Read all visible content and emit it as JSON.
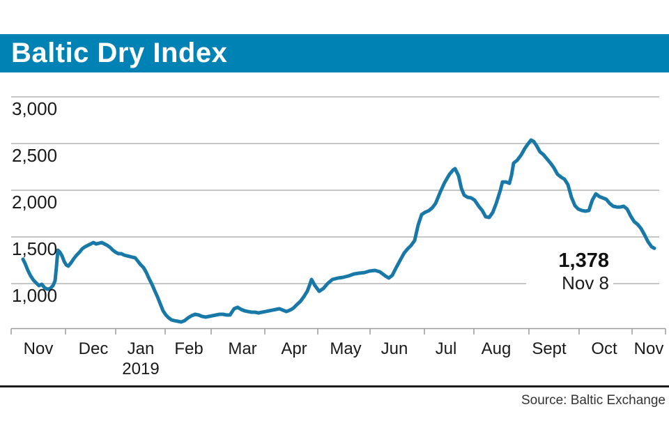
{
  "header": {
    "title": "Baltic Dry Index"
  },
  "footer": {
    "source": "Source: Baltic Exchange"
  },
  "colors": {
    "banner": "#0082b4",
    "line": "#1878a8",
    "grid": "#c6c6c6",
    "axis": "#9b9b9b",
    "text": "#1a1a1a"
  },
  "chart_data": {
    "type": "line",
    "title": "Baltic Dry Index",
    "legend": "none",
    "grid": "horizontal",
    "y_axis": {
      "range_px_anchor": "1000at407_134per1000",
      "ylim": [
        490,
        3100
      ],
      "ticks": [
        {
          "value": 3000,
          "label": "3,000"
        },
        {
          "value": 2500,
          "label": "2,500"
        },
        {
          "value": 2000,
          "label": "2,000"
        },
        {
          "value": 1500,
          "label": "1,500"
        },
        {
          "value": 1000,
          "label": "1,000"
        }
      ]
    },
    "x_axis": {
      "months": [
        {
          "label": "Nov",
          "x": 55
        },
        {
          "label": "Dec",
          "x": 134
        },
        {
          "label": "Jan",
          "x": 202
        },
        {
          "label": "Feb",
          "x": 271
        },
        {
          "label": "Mar",
          "x": 348
        },
        {
          "label": "Apr",
          "x": 422
        },
        {
          "label": "May",
          "x": 496
        },
        {
          "label": "Jun",
          "x": 566
        },
        {
          "label": "Jul",
          "x": 640
        },
        {
          "label": "Aug",
          "x": 712
        },
        {
          "label": "Sept",
          "x": 788
        },
        {
          "label": "Oct",
          "x": 867
        },
        {
          "label": "Nov",
          "x": 931
        }
      ],
      "year_label": {
        "text": "2019",
        "x": 202
      },
      "ticks": [
        16,
        94,
        166,
        237,
        303,
        380,
        456,
        531,
        609,
        680,
        759,
        831,
        907,
        955
      ]
    },
    "annotation": {
      "value": "1,378",
      "date": "Nov 8"
    },
    "points": [
      [
        33,
        1261
      ],
      [
        36,
        1216
      ],
      [
        40,
        1142
      ],
      [
        44,
        1082
      ],
      [
        48,
        1037
      ],
      [
        52,
        1007
      ],
      [
        56,
        978
      ],
      [
        60,
        993
      ],
      [
        64,
        955
      ],
      [
        68,
        940
      ],
      [
        72,
        948
      ],
      [
        76,
        978
      ],
      [
        79,
        1030
      ],
      [
        81,
        1180
      ],
      [
        83,
        1358
      ],
      [
        86,
        1336
      ],
      [
        89,
        1298
      ],
      [
        92,
        1239
      ],
      [
        95,
        1201
      ],
      [
        98,
        1187
      ],
      [
        102,
        1224
      ],
      [
        106,
        1269
      ],
      [
        110,
        1306
      ],
      [
        114,
        1336
      ],
      [
        118,
        1373
      ],
      [
        122,
        1395
      ],
      [
        126,
        1410
      ],
      [
        130,
        1425
      ],
      [
        134,
        1440
      ],
      [
        138,
        1425
      ],
      [
        142,
        1432
      ],
      [
        146,
        1440
      ],
      [
        150,
        1425
      ],
      [
        154,
        1410
      ],
      [
        158,
        1388
      ],
      [
        162,
        1358
      ],
      [
        166,
        1336
      ],
      [
        170,
        1321
      ],
      [
        174,
        1321
      ],
      [
        178,
        1306
      ],
      [
        182,
        1298
      ],
      [
        186,
        1291
      ],
      [
        190,
        1283
      ],
      [
        194,
        1276
      ],
      [
        198,
        1239
      ],
      [
        202,
        1201
      ],
      [
        206,
        1172
      ],
      [
        210,
        1119
      ],
      [
        214,
        1052
      ],
      [
        218,
        993
      ],
      [
        222,
        925
      ],
      [
        226,
        858
      ],
      [
        230,
        783
      ],
      [
        234,
        709
      ],
      [
        238,
        664
      ],
      [
        242,
        634
      ],
      [
        246,
        612
      ],
      [
        250,
        604
      ],
      [
        255,
        597
      ],
      [
        260,
        589
      ],
      [
        265,
        604
      ],
      [
        270,
        634
      ],
      [
        275,
        657
      ],
      [
        280,
        672
      ],
      [
        285,
        664
      ],
      [
        290,
        649
      ],
      [
        295,
        642
      ],
      [
        300,
        649
      ],
      [
        305,
        657
      ],
      [
        310,
        664
      ],
      [
        315,
        672
      ],
      [
        320,
        672
      ],
      [
        325,
        664
      ],
      [
        330,
        664
      ],
      [
        336,
        731
      ],
      [
        341,
        746
      ],
      [
        346,
        724
      ],
      [
        351,
        709
      ],
      [
        356,
        701
      ],
      [
        361,
        694
      ],
      [
        366,
        694
      ],
      [
        371,
        686
      ],
      [
        376,
        694
      ],
      [
        381,
        701
      ],
      [
        386,
        709
      ],
      [
        391,
        716
      ],
      [
        396,
        724
      ],
      [
        401,
        731
      ],
      [
        406,
        716
      ],
      [
        411,
        701
      ],
      [
        416,
        716
      ],
      [
        421,
        738
      ],
      [
        426,
        775
      ],
      [
        431,
        810
      ],
      [
        436,
        860
      ],
      [
        441,
        920
      ],
      [
        445,
        1000
      ],
      [
        447,
        1045
      ],
      [
        452,
        978
      ],
      [
        458,
        918
      ],
      [
        464,
        948
      ],
      [
        470,
        1000
      ],
      [
        477,
        1045
      ],
      [
        485,
        1060
      ],
      [
        492,
        1067
      ],
      [
        500,
        1082
      ],
      [
        508,
        1104
      ],
      [
        515,
        1112
      ],
      [
        523,
        1119
      ],
      [
        530,
        1134
      ],
      [
        538,
        1142
      ],
      [
        545,
        1127
      ],
      [
        553,
        1082
      ],
      [
        558,
        1060
      ],
      [
        563,
        1090
      ],
      [
        568,
        1164
      ],
      [
        575,
        1261
      ],
      [
        580,
        1328
      ],
      [
        585,
        1373
      ],
      [
        590,
        1410
      ],
      [
        595,
        1462
      ],
      [
        600,
        1627
      ],
      [
        605,
        1739
      ],
      [
        610,
        1764
      ],
      [
        615,
        1780
      ],
      [
        620,
        1810
      ],
      [
        625,
        1858
      ],
      [
        632,
        1985
      ],
      [
        638,
        2082
      ],
      [
        645,
        2171
      ],
      [
        650,
        2216
      ],
      [
        653,
        2231
      ],
      [
        658,
        2156
      ],
      [
        662,
        2022
      ],
      [
        666,
        1948
      ],
      [
        671,
        1925
      ],
      [
        676,
        1918
      ],
      [
        681,
        1895
      ],
      [
        687,
        1828
      ],
      [
        692,
        1783
      ],
      [
        697,
        1716
      ],
      [
        702,
        1709
      ],
      [
        707,
        1761
      ],
      [
        712,
        1858
      ],
      [
        718,
        2000
      ],
      [
        721,
        2089
      ],
      [
        726,
        2089
      ],
      [
        731,
        2074
      ],
      [
        734,
        2160
      ],
      [
        737,
        2290
      ],
      [
        742,
        2320
      ],
      [
        748,
        2380
      ],
      [
        753,
        2447
      ],
      [
        758,
        2499
      ],
      [
        762,
        2537
      ],
      [
        766,
        2522
      ],
      [
        770,
        2477
      ],
      [
        775,
        2410
      ],
      [
        780,
        2380
      ],
      [
        785,
        2335
      ],
      [
        790,
        2290
      ],
      [
        795,
        2238
      ],
      [
        800,
        2171
      ],
      [
        805,
        2141
      ],
      [
        810,
        2119
      ],
      [
        815,
        2059
      ],
      [
        820,
        1925
      ],
      [
        825,
        1835
      ],
      [
        830,
        1798
      ],
      [
        835,
        1783
      ],
      [
        840,
        1776
      ],
      [
        845,
        1783
      ],
      [
        850,
        1895
      ],
      [
        855,
        1962
      ],
      [
        860,
        1932
      ],
      [
        865,
        1918
      ],
      [
        870,
        1903
      ],
      [
        875,
        1858
      ],
      [
        880,
        1828
      ],
      [
        885,
        1820
      ],
      [
        890,
        1820
      ],
      [
        895,
        1828
      ],
      [
        900,
        1798
      ],
      [
        905,
        1724
      ],
      [
        910,
        1664
      ],
      [
        915,
        1634
      ],
      [
        920,
        1589
      ],
      [
        925,
        1522
      ],
      [
        930,
        1447
      ],
      [
        935,
        1395
      ],
      [
        939,
        1378
      ]
    ]
  }
}
